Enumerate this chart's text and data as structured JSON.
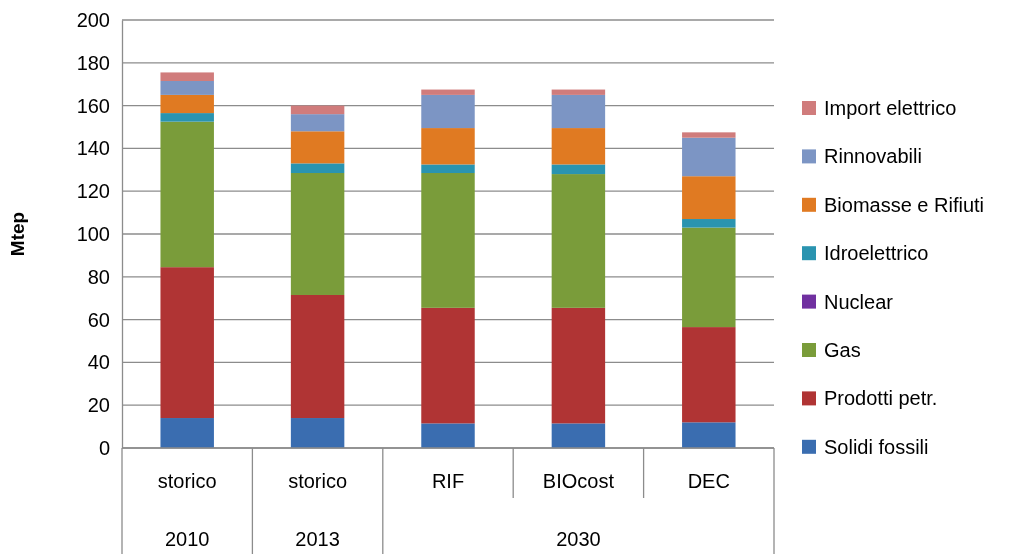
{
  "chart_data": {
    "type": "bar",
    "stacked": true,
    "ylabel": "Mtep",
    "categories": [
      "storico",
      "storico",
      "RIF",
      "BIOcost",
      "DEC"
    ],
    "annotations": [
      "2010",
      "2013",
      "2030"
    ],
    "ylim": [
      0,
      200
    ],
    "yticks": [
      0,
      20,
      40,
      60,
      80,
      100,
      120,
      140,
      160,
      180,
      200
    ],
    "grid": "y",
    "legend": "right",
    "series": [
      {
        "name": "Solidi fossili",
        "color": "#3a6db0",
        "values": [
          14,
          14,
          11.5,
          11.5,
          12
        ]
      },
      {
        "name": "Prodotti petr.",
        "color": "#b03434",
        "values": [
          70.5,
          57.5,
          54,
          54,
          44.5
        ]
      },
      {
        "name": "Gas",
        "color": "#7a9c3a",
        "values": [
          68,
          57,
          63,
          62.5,
          46.5
        ]
      },
      {
        "name": "Nuclear",
        "color": "#7030a0",
        "values": [
          0,
          0,
          0,
          0,
          0
        ]
      },
      {
        "name": "Idroelettrico",
        "color": "#2a94b0",
        "values": [
          4,
          4.5,
          4,
          4.5,
          4
        ]
      },
      {
        "name": "Biomasse e Rifiuti",
        "color": "#e07a22",
        "values": [
          8.5,
          15,
          17,
          17,
          20
        ]
      },
      {
        "name": "Rinnovabili",
        "color": "#7c95c4",
        "values": [
          6.5,
          8,
          15.5,
          15.5,
          18
        ]
      },
      {
        "name": "Import elettrico",
        "color": "#d07c7c",
        "values": [
          4,
          4,
          2.5,
          2.5,
          2.5
        ]
      }
    ]
  }
}
